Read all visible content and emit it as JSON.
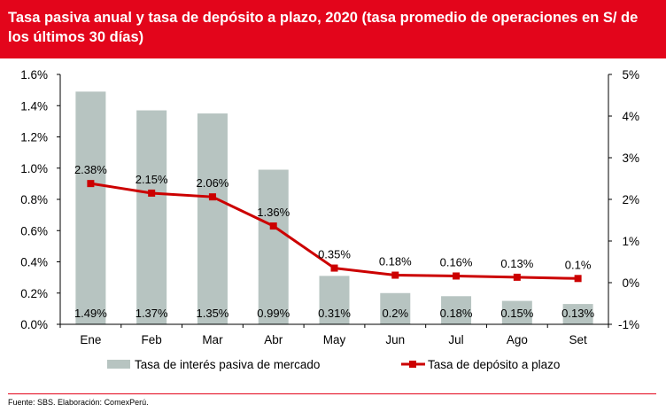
{
  "title": "Tasa pasiva anual y tasa de depósito a plazo, 2020 (tasa promedio de operaciones en S/ de los últimos 30 días)",
  "source": "Fuente: SBS. Elaboración: ComexPerú.",
  "colors": {
    "title_bg": "#e3051b",
    "bar": "#b7c4c1",
    "line": "#cc0000"
  },
  "chart_data": {
    "type": "bar",
    "title": "Tasa pasiva anual y tasa de depósito a plazo, 2020 (tasa promedio de operaciones en S/ de los últimos 30 días)",
    "categories": [
      "Ene",
      "Feb",
      "Mar",
      "Abr",
      "May",
      "Jun",
      "Jul",
      "Ago",
      "Set"
    ],
    "y_left": {
      "min": 0,
      "max": 1.6,
      "ticks": [
        "0.0%",
        "0.2%",
        "0.4%",
        "0.6%",
        "0.8%",
        "1.0%",
        "1.2%",
        "1.4%",
        "1.6%"
      ]
    },
    "y_right": {
      "min": -1,
      "max": 5,
      "ticks": [
        "-1%",
        "0%",
        "1%",
        "2%",
        "3%",
        "4%",
        "5%"
      ]
    },
    "series": [
      {
        "name": "Tasa de interés pasiva de mercado",
        "type": "bar",
        "axis": "left",
        "values": [
          1.49,
          1.37,
          1.35,
          0.99,
          0.31,
          0.2,
          0.18,
          0.15,
          0.13
        ],
        "labels": [
          "1.49%",
          "1.37%",
          "1.35%",
          "0.99%",
          "0.31%",
          "0.2%",
          "0.18%",
          "0.15%",
          "0.13%"
        ]
      },
      {
        "name": "Tasa de depósito a plazo",
        "type": "line",
        "axis": "right",
        "values": [
          2.38,
          2.15,
          2.06,
          1.36,
          0.35,
          0.18,
          0.16,
          0.13,
          0.1
        ],
        "labels": [
          "2.38%",
          "2.15%",
          "2.06%",
          "1.36%",
          "0.35%",
          "0.18%",
          "0.16%",
          "0.13%",
          "0.1%"
        ]
      }
    ],
    "legend": "bottom"
  }
}
